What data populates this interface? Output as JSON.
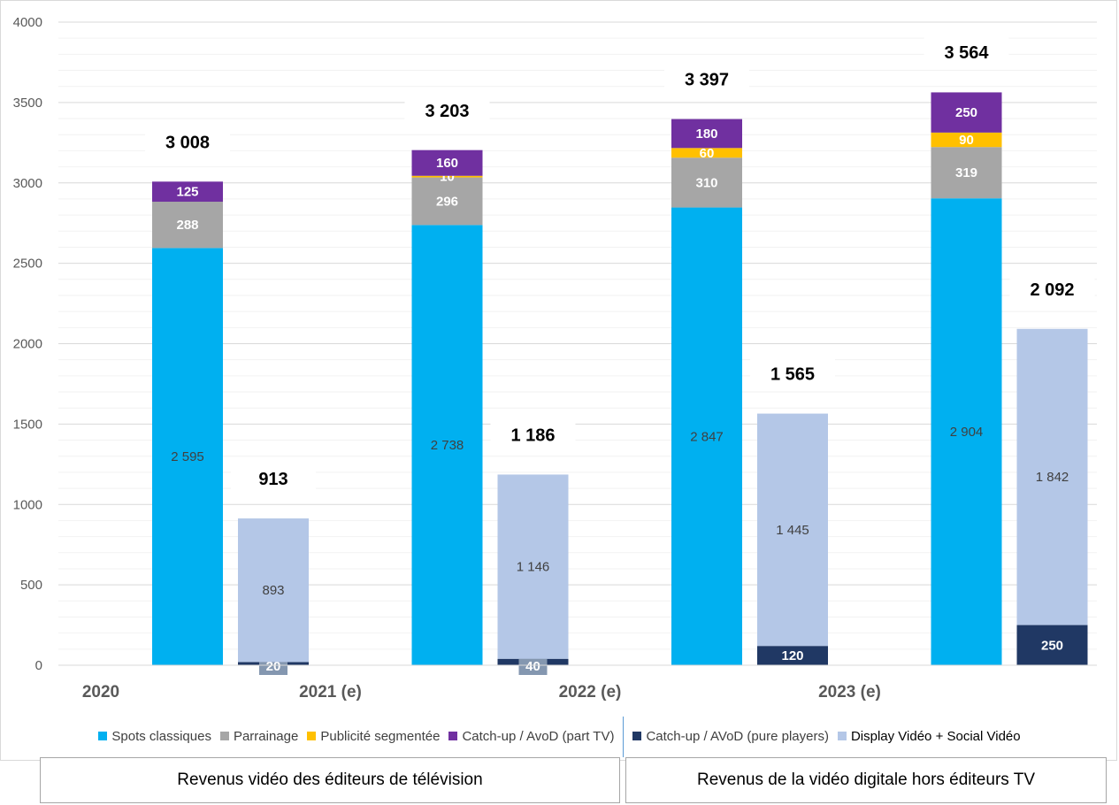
{
  "chart_data": {
    "type": "bar",
    "stacked": true,
    "categories": [
      "2020",
      "2021 (e)",
      "2022 (e)",
      "2023 (e)"
    ],
    "ylim": [
      0,
      4000
    ],
    "yticks": [
      0,
      500,
      1000,
      1500,
      2000,
      2500,
      3000,
      3500,
      4000
    ],
    "ytick_labels": [
      "0",
      "500",
      "1000",
      "1500",
      "2000",
      "2500",
      "3000",
      "3500",
      "4000"
    ],
    "grid": true,
    "legend_position": "bottom",
    "groups": [
      {
        "name": "Revenus vidéo des éditeurs de télévision",
        "totals": [
          3008,
          3203,
          3397,
          3564
        ],
        "total_labels": [
          "3 008",
          "3 203",
          "3 397",
          "3 564"
        ],
        "series": [
          {
            "name": "Spots classiques",
            "color": "#00b0f0",
            "values": [
              2595,
              2738,
              2847,
              2904
            ],
            "labels": [
              "2 595",
              "2 738",
              "2 847",
              "2 904"
            ],
            "label_color": "#404040"
          },
          {
            "name": "Parrainage",
            "color": "#a6a6a6",
            "values": [
              288,
              296,
              310,
              319
            ],
            "labels": [
              "288",
              "296",
              "310",
              "319"
            ],
            "label_color": "#ffffff"
          },
          {
            "name": "Publicité segmentée",
            "color": "#ffc000",
            "values": [
              0,
              10,
              60,
              90
            ],
            "labels": [
              "",
              "10",
              "60",
              "90"
            ],
            "label_color": "#ffffff"
          },
          {
            "name": "Catch-up / AvoD (part TV)",
            "color": "#7030a0",
            "values": [
              125,
              160,
              180,
              250
            ],
            "labels": [
              "125",
              "160",
              "180",
              "250"
            ],
            "label_color": "#ffffff"
          }
        ]
      },
      {
        "name": "Revenus de la vidéo digitale hors éditeurs TV",
        "totals": [
          913,
          1186,
          1565,
          2092
        ],
        "total_labels": [
          "913",
          "1 186",
          "1 565",
          "2 092"
        ],
        "series": [
          {
            "name": "Catch-up / AVoD (pure players)",
            "color": "#203864",
            "values": [
              20,
              40,
              120,
              250
            ],
            "labels": [
              "20",
              "40",
              "120",
              "250"
            ],
            "label_color": "#ffffff"
          },
          {
            "name": "Display Vidéo + Social Vidéo",
            "color": "#b4c7e7",
            "values": [
              893,
              1146,
              1445,
              1842
            ],
            "labels": [
              "893",
              "1 146",
              "1 445",
              "1 842"
            ],
            "label_color": "#404040"
          }
        ]
      }
    ]
  },
  "legend": {
    "items": [
      {
        "label": "Spots classiques",
        "color": "#00b0f0"
      },
      {
        "label": "Parrainage",
        "color": "#a6a6a6"
      },
      {
        "label": "Publicité segmentée",
        "color": "#ffc000"
      },
      {
        "label": "Catch-up / AvoD (part TV)",
        "color": "#7030a0"
      },
      {
        "label": "Catch-up / AVoD (pure players)",
        "color": "#203864"
      },
      {
        "label": "Display Vidéo + Social Vidéo",
        "color": "#b4c7e7"
      }
    ]
  },
  "group_labels": {
    "tv": "Revenus vidéo des éditeurs de télévision",
    "digital": "Revenus de la vidéo digitale hors éditeurs TV"
  }
}
